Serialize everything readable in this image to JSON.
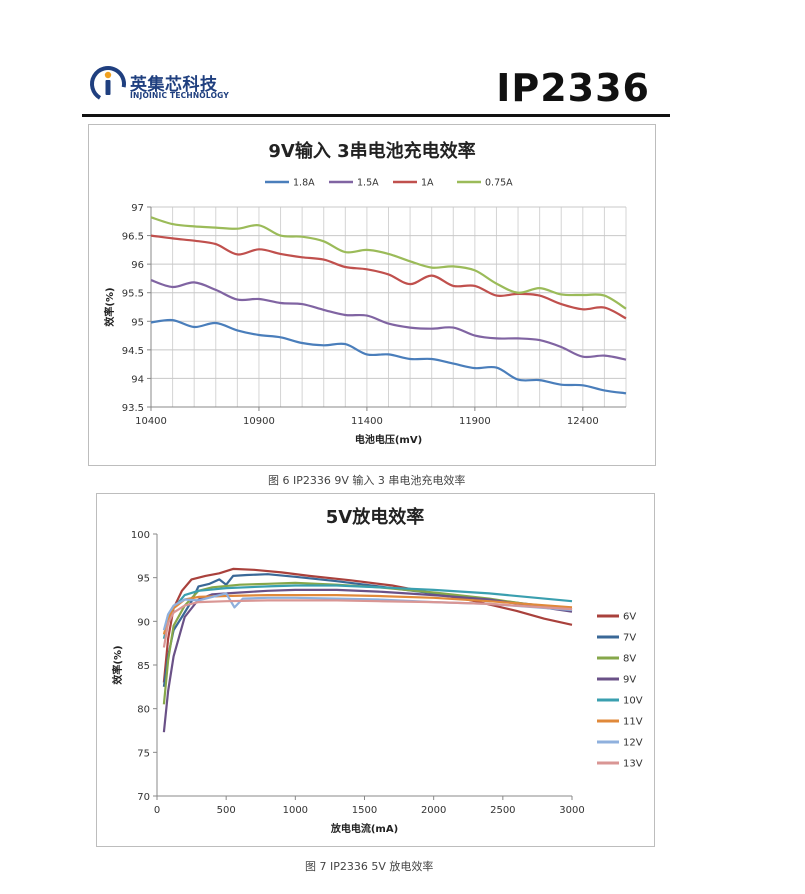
{
  "header": {
    "logo_cn": "英集芯科技",
    "logo_en": "INJOINIC TECHNOLOGY",
    "model": "IP2336"
  },
  "captions": {
    "fig6": "图 6   IP2336 9V 输入 3 串电池充电效率",
    "fig7": "图 7   IP2336 5V 放电效率"
  },
  "chart_data": [
    {
      "type": "line",
      "title": "9V输入 3串电池充电效率",
      "xlabel": "电池电压(mV)",
      "ylabel": "效率(%)",
      "xlim": [
        10400,
        12600
      ],
      "ylim": [
        93.5,
        97
      ],
      "xticks": [
        "10400",
        "10900",
        "11400",
        "11900",
        "12400"
      ],
      "xtick_values": [
        10400,
        10900,
        11400,
        11900,
        12400
      ],
      "yticks": [
        "93.5",
        "94",
        "94.5",
        "95",
        "95.5",
        "96",
        "96.5",
        "97"
      ],
      "ytick_values": [
        93.5,
        94,
        94.5,
        95,
        95.5,
        96,
        96.5,
        97
      ],
      "grid": true,
      "legend_position": "top",
      "x": [
        10400,
        10500,
        10600,
        10700,
        10800,
        10900,
        11000,
        11100,
        11200,
        11300,
        11400,
        11500,
        11600,
        11700,
        11800,
        11900,
        12000,
        12100,
        12200,
        12300,
        12400,
        12500,
        12600
      ],
      "series": [
        {
          "name": "1.8A",
          "color": "#4a7ebb",
          "values": [
            94.98,
            95.02,
            94.9,
            94.97,
            94.84,
            94.76,
            94.72,
            94.62,
            94.58,
            94.6,
            94.42,
            94.42,
            94.34,
            94.34,
            94.26,
            94.18,
            94.19,
            93.98,
            93.97,
            93.89,
            93.88,
            93.79,
            93.74
          ]
        },
        {
          "name": "1.5A",
          "color": "#8064a2",
          "values": [
            95.72,
            95.6,
            95.68,
            95.55,
            95.38,
            95.39,
            95.32,
            95.3,
            95.2,
            95.11,
            95.1,
            94.96,
            94.89,
            94.87,
            94.89,
            94.75,
            94.7,
            94.7,
            94.67,
            94.55,
            94.38,
            94.4,
            94.33
          ]
        },
        {
          "name": "1A",
          "color": "#c0504d",
          "values": [
            96.5,
            96.45,
            96.41,
            96.35,
            96.17,
            96.26,
            96.18,
            96.12,
            96.08,
            95.95,
            95.91,
            95.82,
            95.65,
            95.8,
            95.62,
            95.62,
            95.45,
            95.48,
            95.45,
            95.3,
            95.21,
            95.24,
            95.05
          ]
        },
        {
          "name": "0.75A",
          "color": "#9bbb59",
          "values": [
            96.82,
            96.7,
            96.66,
            96.64,
            96.62,
            96.68,
            96.5,
            96.48,
            96.4,
            96.21,
            96.25,
            96.18,
            96.05,
            95.94,
            95.96,
            95.89,
            95.66,
            95.5,
            95.58,
            95.47,
            95.46,
            95.45,
            95.22
          ]
        }
      ]
    },
    {
      "type": "line",
      "title": "5V放电效率",
      "xlabel": "放电电流(mA)",
      "ylabel": "效率(%)",
      "xlim": [
        0,
        3000
      ],
      "ylim": [
        70,
        100
      ],
      "xticks": [
        "0",
        "500",
        "1000",
        "1500",
        "2000",
        "2500",
        "3000"
      ],
      "xtick_values": [
        0,
        500,
        1000,
        1500,
        2000,
        2500,
        3000
      ],
      "yticks": [
        "70",
        "75",
        "80",
        "85",
        "90",
        "95",
        "100"
      ],
      "ytick_values": [
        70,
        75,
        80,
        85,
        90,
        95,
        100
      ],
      "grid": false,
      "legend_position": "right",
      "series": [
        {
          "name": "6V",
          "color": "#a9413c",
          "points": [
            [
              50,
              83
            ],
            [
              80,
              88
            ],
            [
              120,
              91.5
            ],
            [
              180,
              93.5
            ],
            [
              250,
              94.8
            ],
            [
              350,
              95.2
            ],
            [
              450,
              95.5
            ],
            [
              550,
              96
            ],
            [
              700,
              95.9
            ],
            [
              900,
              95.6
            ],
            [
              1100,
              95.2
            ],
            [
              1400,
              94.7
            ],
            [
              1700,
              94.1
            ],
            [
              2000,
              93.2
            ],
            [
              2300,
              92.3
            ],
            [
              2600,
              91.2
            ],
            [
              2800,
              90.3
            ],
            [
              3000,
              89.6
            ]
          ]
        },
        {
          "name": "7V",
          "color": "#3a6897",
          "points": [
            [
              50,
              82.5
            ],
            [
              80,
              86
            ],
            [
              120,
              89
            ],
            [
              180,
              90.5
            ],
            [
              250,
              92.3
            ],
            [
              300,
              94
            ],
            [
              380,
              94.3
            ],
            [
              450,
              94.8
            ],
            [
              500,
              94.2
            ],
            [
              550,
              95.2
            ],
            [
              650,
              95.3
            ],
            [
              800,
              95.4
            ],
            [
              1000,
              95.1
            ],
            [
              1300,
              94.6
            ],
            [
              1600,
              94
            ],
            [
              2000,
              93.2
            ],
            [
              2400,
              92.5
            ],
            [
              3000,
              91.4
            ]
          ]
        },
        {
          "name": "8V",
          "color": "#86a74a",
          "points": [
            [
              50,
              80.5
            ],
            [
              80,
              85.5
            ],
            [
              120,
              89.5
            ],
            [
              200,
              91.8
            ],
            [
              300,
              93.5
            ],
            [
              400,
              93.9
            ],
            [
              600,
              94.2
            ],
            [
              800,
              94.3
            ],
            [
              1000,
              94.4
            ],
            [
              1300,
              94.2
            ],
            [
              1600,
              93.9
            ],
            [
              2000,
              93.3
            ],
            [
              2400,
              92.6
            ],
            [
              3000,
              91.2
            ]
          ]
        },
        {
          "name": "9V",
          "color": "#6a5187",
          "points": [
            [
              50,
              77.3
            ],
            [
              80,
              82
            ],
            [
              120,
              86
            ],
            [
              200,
              90.5
            ],
            [
              300,
              92.5
            ],
            [
              400,
              93.1
            ],
            [
              600,
              93.3
            ],
            [
              800,
              93.5
            ],
            [
              1000,
              93.6
            ],
            [
              1300,
              93.6
            ],
            [
              1600,
              93.4
            ],
            [
              2000,
              93
            ],
            [
              2400,
              92.5
            ],
            [
              3000,
              91.1
            ]
          ]
        },
        {
          "name": "10V",
          "color": "#3a9faf",
          "points": [
            [
              50,
              88
            ],
            [
              80,
              90
            ],
            [
              120,
              91.5
            ],
            [
              200,
              93
            ],
            [
              300,
              93.5
            ],
            [
              500,
              93.8
            ],
            [
              800,
              94
            ],
            [
              1000,
              94.1
            ],
            [
              1300,
              94.1
            ],
            [
              1600,
              93.9
            ],
            [
              2000,
              93.6
            ],
            [
              2400,
              93.2
            ],
            [
              3000,
              92.3
            ]
          ]
        },
        {
          "name": "11V",
          "color": "#e0893a",
          "points": [
            [
              50,
              88.5
            ],
            [
              80,
              90.3
            ],
            [
              120,
              91.5
            ],
            [
              200,
              92.5
            ],
            [
              300,
              92.8
            ],
            [
              500,
              92.9
            ],
            [
              800,
              93
            ],
            [
              1000,
              93
            ],
            [
              1300,
              93
            ],
            [
              1600,
              92.9
            ],
            [
              2000,
              92.7
            ],
            [
              2400,
              92.3
            ],
            [
              3000,
              91.6
            ]
          ]
        },
        {
          "name": "12V",
          "color": "#8fb0dd",
          "points": [
            [
              50,
              89
            ],
            [
              80,
              90.8
            ],
            [
              120,
              91.8
            ],
            [
              200,
              92.5
            ],
            [
              300,
              92.4
            ],
            [
              400,
              92.8
            ],
            [
              500,
              93.2
            ],
            [
              560,
              91.6
            ],
            [
              620,
              92.6
            ],
            [
              800,
              92.7
            ],
            [
              1000,
              92.7
            ],
            [
              1300,
              92.6
            ],
            [
              1600,
              92.5
            ],
            [
              2000,
              92.2
            ],
            [
              2400,
              92
            ],
            [
              3000,
              91.3
            ]
          ]
        },
        {
          "name": "13V",
          "color": "#d99694",
          "points": [
            [
              50,
              87
            ],
            [
              80,
              89.8
            ],
            [
              120,
              91
            ],
            [
              200,
              91.8
            ],
            [
              300,
              92.2
            ],
            [
              500,
              92.3
            ],
            [
              800,
              92.4
            ],
            [
              1000,
              92.4
            ],
            [
              1300,
              92.4
            ],
            [
              1600,
              92.3
            ],
            [
              2000,
              92.2
            ],
            [
              2400,
              92
            ],
            [
              3000,
              91.4
            ]
          ]
        }
      ]
    }
  ]
}
